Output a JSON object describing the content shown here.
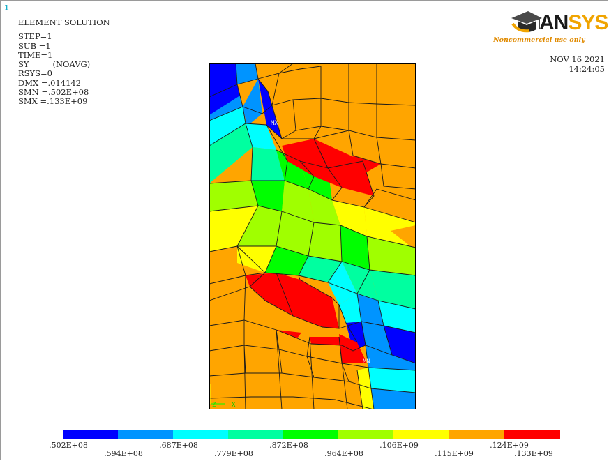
{
  "window_number": "1",
  "info": {
    "title": "ELEMENT SOLUTION",
    "step": "STEP=1",
    "sub": "SUB =1",
    "time": "TIME=1",
    "item": "SY",
    "avg": "(NOAVG)",
    "rsys": "RSYS=0",
    "dmx": "DMX =.014142",
    "smn": "SMN =.502E+08",
    "smx": "SMX =.133E+09"
  },
  "logo": {
    "text_main": "AN",
    "text_accent": "SYS",
    "subtitle": "Noncommercial use only",
    "icon": "graduation-cap-icon"
  },
  "datetime": {
    "date": "NOV 16 2021",
    "time": "14:24:05"
  },
  "plot_markers": {
    "min_label": "MN",
    "max_label": "MX"
  },
  "colors": {
    "contour": [
      "#0000ff",
      "#0094ff",
      "#00ffff",
      "#00ffa0",
      "#00ff00",
      "#a0ff00",
      "#ffff00",
      "#ffa500",
      "#ff0000"
    ]
  },
  "legend": {
    "labels_top": [
      ".502E+08",
      ".687E+08",
      ".872E+08",
      ".106E+09",
      ".124E+09"
    ],
    "labels_bottom": [
      ".594E+08",
      ".779E+08",
      ".964E+08",
      ".115E+09",
      ".133E+09"
    ]
  }
}
